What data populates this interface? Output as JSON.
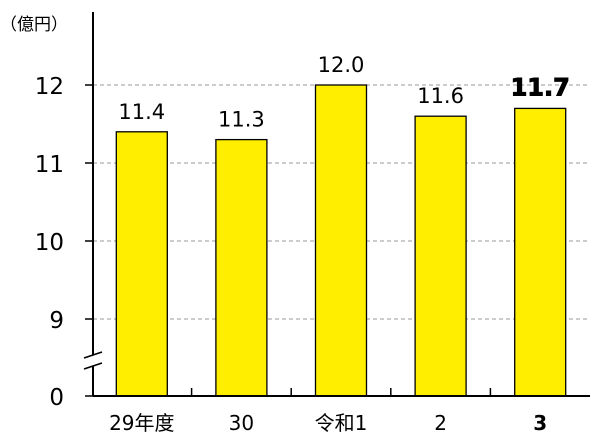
{
  "chart_data": {
    "type": "bar",
    "unit_label": "（億円）",
    "categories": [
      "29年度",
      "30",
      "令和1",
      "2",
      "3"
    ],
    "values": [
      11.4,
      11.3,
      12.0,
      11.6,
      11.7
    ],
    "value_labels": [
      "11.4",
      "11.3",
      "12.0",
      "11.6",
      "11.7"
    ],
    "highlight_index": 4,
    "y_ticks": [
      {
        "value": 0,
        "label": "0"
      },
      {
        "value": 9,
        "label": "9"
      },
      {
        "value": 10,
        "label": "10"
      },
      {
        "value": 11,
        "label": "11"
      },
      {
        "value": 12,
        "label": "12"
      }
    ],
    "axis_break_below": 9,
    "grid": true,
    "colors": {
      "bar": "#ffee00",
      "highlight_text": "#ffee00",
      "grid": "#9a9a9a"
    }
  }
}
